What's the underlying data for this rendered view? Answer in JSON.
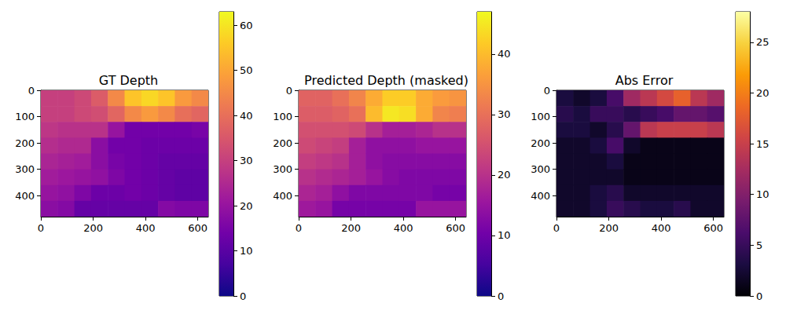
{
  "chart_data": [
    {
      "type": "heatmap",
      "title": "GT Depth",
      "color": "plasma",
      "x_edges": [
        0,
        64,
        128,
        192,
        256,
        320,
        384,
        448,
        512,
        576,
        640
      ],
      "y_edges": [
        0,
        60,
        120,
        180,
        240,
        300,
        360,
        420,
        480
      ],
      "values": [
        [
          30,
          30,
          32,
          36,
          45,
          55,
          58,
          55,
          48,
          45
        ],
        [
          30,
          30,
          32,
          33,
          38,
          45,
          48,
          45,
          40,
          38
        ],
        [
          28,
          27,
          27,
          27,
          20,
          14,
          14,
          14,
          14,
          15
        ],
        [
          26,
          25,
          25,
          18,
          14,
          14,
          13,
          13,
          13,
          13
        ],
        [
          24,
          23,
          22,
          18,
          15,
          14,
          13,
          12,
          12,
          12
        ],
        [
          22,
          21,
          20,
          19,
          16,
          14,
          13,
          12,
          11,
          11
        ],
        [
          20,
          19,
          16,
          13,
          13,
          14,
          13,
          12,
          11,
          11
        ],
        [
          18,
          17,
          12,
          12,
          12,
          12,
          12,
          17,
          16,
          16
        ]
      ],
      "xlim": [
        0,
        640
      ],
      "ylim": [
        480,
        0
      ],
      "xticks": [
        0,
        200,
        400,
        600
      ],
      "yticks": [
        0,
        100,
        200,
        300,
        400
      ],
      "colorbar_range": [
        0,
        63
      ],
      "colorbar_ticks": [
        0,
        10,
        20,
        30,
        40,
        50,
        60
      ]
    },
    {
      "type": "heatmap",
      "title": "Predicted Depth (masked)",
      "color": "plasma",
      "x_edges": [
        0,
        64,
        128,
        192,
        256,
        320,
        384,
        448,
        512,
        576,
        640
      ],
      "y_edges": [
        0,
        60,
        120,
        180,
        240,
        300,
        360,
        420,
        480
      ],
      "values": [
        [
          28,
          28,
          30,
          33,
          38,
          42,
          42,
          38,
          36,
          35
        ],
        [
          27,
          27,
          28,
          30,
          40,
          45,
          44,
          38,
          33,
          32
        ],
        [
          25,
          25,
          25,
          24,
          20,
          17,
          17,
          18,
          20,
          20
        ],
        [
          24,
          23,
          22,
          17,
          14,
          14,
          14,
          15,
          15,
          15
        ],
        [
          22,
          21,
          20,
          17,
          14,
          13,
          13,
          13,
          13,
          13
        ],
        [
          20,
          19,
          18,
          17,
          15,
          13,
          12,
          12,
          12,
          12
        ],
        [
          18,
          17,
          14,
          12,
          12,
          12,
          12,
          12,
          11,
          11
        ],
        [
          16,
          15,
          11,
          11,
          11,
          11,
          11,
          15,
          15,
          15
        ]
      ],
      "xlim": [
        0,
        640
      ],
      "ylim": [
        480,
        0
      ],
      "xticks": [
        0,
        200,
        400,
        600
      ],
      "yticks": [
        0,
        100,
        200,
        300,
        400
      ],
      "colorbar_range": [
        0,
        47
      ],
      "colorbar_ticks": [
        0,
        10,
        20,
        30,
        40
      ]
    },
    {
      "type": "heatmap",
      "title": "Abs Error",
      "color": "inferno",
      "x_edges": [
        0,
        64,
        128,
        192,
        256,
        320,
        384,
        448,
        512,
        576,
        640
      ],
      "y_edges": [
        0,
        60,
        120,
        180,
        240,
        300,
        360,
        420,
        480
      ],
      "values": [
        [
          3,
          2,
          3,
          6,
          12,
          14,
          16,
          18,
          14,
          12
        ],
        [
          4,
          3,
          5,
          5,
          4,
          5,
          6,
          8,
          8,
          7
        ],
        [
          3,
          3,
          2,
          4,
          8,
          14,
          15,
          15,
          15,
          14
        ],
        [
          2,
          2,
          3,
          6,
          2,
          1,
          1,
          1,
          1,
          1
        ],
        [
          2,
          2,
          2,
          3,
          1,
          1,
          1,
          1,
          1,
          1
        ],
        [
          2,
          2,
          2,
          2,
          1,
          1,
          1,
          1,
          1,
          1
        ],
        [
          2,
          2,
          3,
          4,
          2,
          2,
          2,
          2,
          2,
          2
        ],
        [
          2,
          2,
          3,
          5,
          4,
          3,
          3,
          4,
          2,
          2
        ]
      ],
      "xlim": [
        0,
        640
      ],
      "ylim": [
        480,
        0
      ],
      "xticks": [
        0,
        200,
        400,
        600
      ],
      "yticks": [
        0,
        100,
        200,
        300,
        400
      ],
      "colorbar_range": [
        0,
        28
      ],
      "colorbar_ticks": [
        0,
        5,
        10,
        15,
        20,
        25
      ]
    }
  ]
}
